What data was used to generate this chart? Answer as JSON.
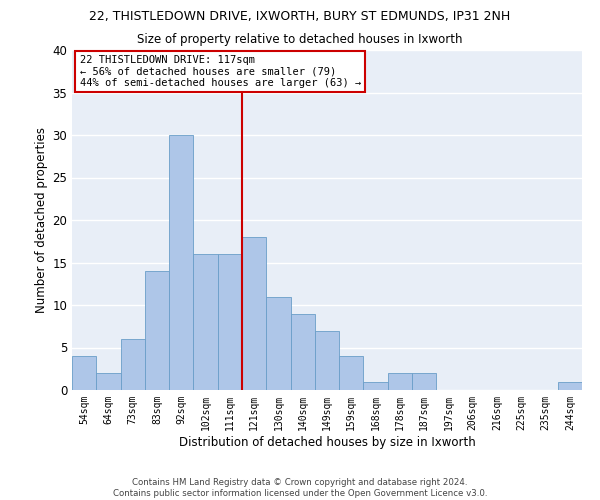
{
  "title1": "22, THISTLEDOWN DRIVE, IXWORTH, BURY ST EDMUNDS, IP31 2NH",
  "title2": "Size of property relative to detached houses in Ixworth",
  "xlabel": "Distribution of detached houses by size in Ixworth",
  "ylabel": "Number of detached properties",
  "categories": [
    "54sqm",
    "64sqm",
    "73sqm",
    "83sqm",
    "92sqm",
    "102sqm",
    "111sqm",
    "121sqm",
    "130sqm",
    "140sqm",
    "149sqm",
    "159sqm",
    "168sqm",
    "178sqm",
    "187sqm",
    "197sqm",
    "206sqm",
    "216sqm",
    "225sqm",
    "235sqm",
    "244sqm"
  ],
  "values": [
    4,
    2,
    6,
    14,
    30,
    16,
    16,
    18,
    11,
    9,
    7,
    4,
    1,
    2,
    2,
    0,
    0,
    0,
    0,
    0,
    1
  ],
  "bar_color": "#aec6e8",
  "bar_edge_color": "#6a9ec8",
  "vline_color": "#cc0000",
  "annotation_text": "22 THISTLEDOWN DRIVE: 117sqm\n← 56% of detached houses are smaller (79)\n44% of semi-detached houses are larger (63) →",
  "annotation_box_color": "#cc0000",
  "ylim": [
    0,
    40
  ],
  "yticks": [
    0,
    5,
    10,
    15,
    20,
    25,
    30,
    35,
    40
  ],
  "background_color": "#e8eef7",
  "footer": "Contains HM Land Registry data © Crown copyright and database right 2024.\nContains public sector information licensed under the Open Government Licence v3.0."
}
